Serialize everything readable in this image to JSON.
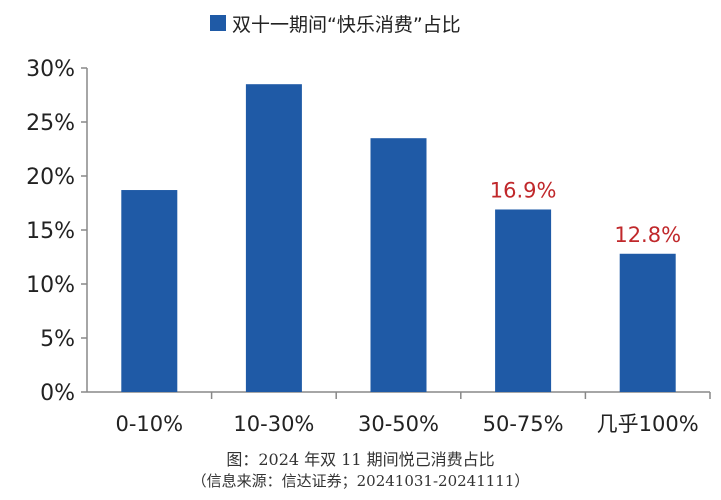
{
  "chart_data": {
    "type": "bar",
    "categories": [
      "0-10%",
      "10-30%",
      "30-50%",
      "50-75%",
      "几乎100%"
    ],
    "series": [
      {
        "name": "双十一期间“快乐消费”占比",
        "values": [
          18.7,
          28.5,
          23.5,
          16.9,
          12.8
        ]
      }
    ],
    "data_labels": [
      "",
      "",
      "",
      "16.9%",
      "12.8%"
    ],
    "y_ticks": [
      "0%",
      "5%",
      "10%",
      "15%",
      "20%",
      "25%",
      "30%"
    ],
    "ylim": [
      0,
      30
    ],
    "grid": false,
    "legend_position": "top",
    "colors": {
      "bar": "#1f5aa6",
      "label": "#c0282b",
      "axis": "#888888"
    }
  },
  "caption": "图：2024 年双 11 期间悦己消费占比",
  "source": "（信息来源：信达证券；20241031-20241111）"
}
